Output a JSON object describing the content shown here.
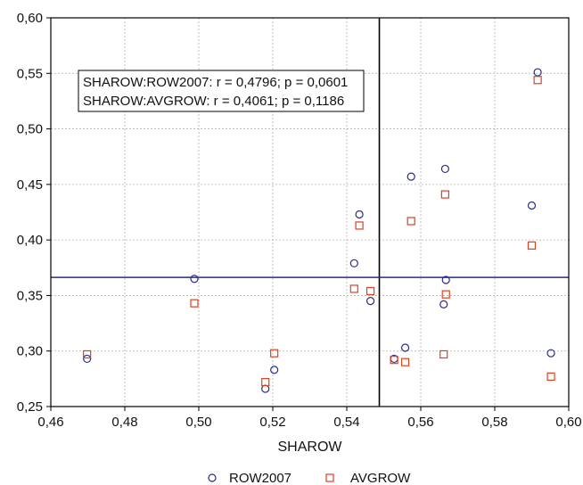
{
  "chart_data": {
    "type": "scatter",
    "xlabel": "SHAROW",
    "ylabel": "",
    "xlim": [
      0.46,
      0.6
    ],
    "ylim": [
      0.25,
      0.6
    ],
    "x_ticks": [
      "0,46",
      "0,48",
      "0,50",
      "0,52",
      "0,54",
      "0,56",
      "0,58",
      "0,60"
    ],
    "y_ticks": [
      "0,25",
      "0,30",
      "0,35",
      "0,40",
      "0,45",
      "0,50",
      "0,55",
      "0,60"
    ],
    "grid": true,
    "legend_position": "bottom",
    "reference_lines": {
      "vertical_x": 0.5488,
      "horizontal_y": 0.3663
    },
    "annotation": [
      "SHAROW:ROW2007:   r = 0,4796; p = 0,0601",
      "SHAROW:AVGROW:   r = 0,4061; p = 0,1186"
    ],
    "series": [
      {
        "name": "ROW2007",
        "marker": "circle",
        "color": "#2a2a8c",
        "points": [
          [
            0.4698,
            0.293
          ],
          [
            0.4988,
            0.365
          ],
          [
            0.518,
            0.266
          ],
          [
            0.5204,
            0.283
          ],
          [
            0.542,
            0.379
          ],
          [
            0.5434,
            0.423
          ],
          [
            0.5464,
            0.345
          ],
          [
            0.5528,
            0.293
          ],
          [
            0.5558,
            0.303
          ],
          [
            0.5574,
            0.457
          ],
          [
            0.5662,
            0.342
          ],
          [
            0.5666,
            0.464
          ],
          [
            0.5668,
            0.364
          ],
          [
            0.59,
            0.431
          ],
          [
            0.5916,
            0.551
          ],
          [
            0.5952,
            0.298
          ]
        ]
      },
      {
        "name": "AVGROW",
        "marker": "square",
        "color": "#e04020",
        "points": [
          [
            0.4698,
            0.297
          ],
          [
            0.4988,
            0.343
          ],
          [
            0.518,
            0.272
          ],
          [
            0.5204,
            0.298
          ],
          [
            0.542,
            0.356
          ],
          [
            0.5434,
            0.413
          ],
          [
            0.5464,
            0.354
          ],
          [
            0.5528,
            0.292
          ],
          [
            0.5558,
            0.29
          ],
          [
            0.5574,
            0.417
          ],
          [
            0.5662,
            0.297
          ],
          [
            0.5666,
            0.441
          ],
          [
            0.5668,
            0.351
          ],
          [
            0.59,
            0.395
          ],
          [
            0.5916,
            0.544
          ],
          [
            0.5952,
            0.277
          ]
        ]
      }
    ]
  }
}
